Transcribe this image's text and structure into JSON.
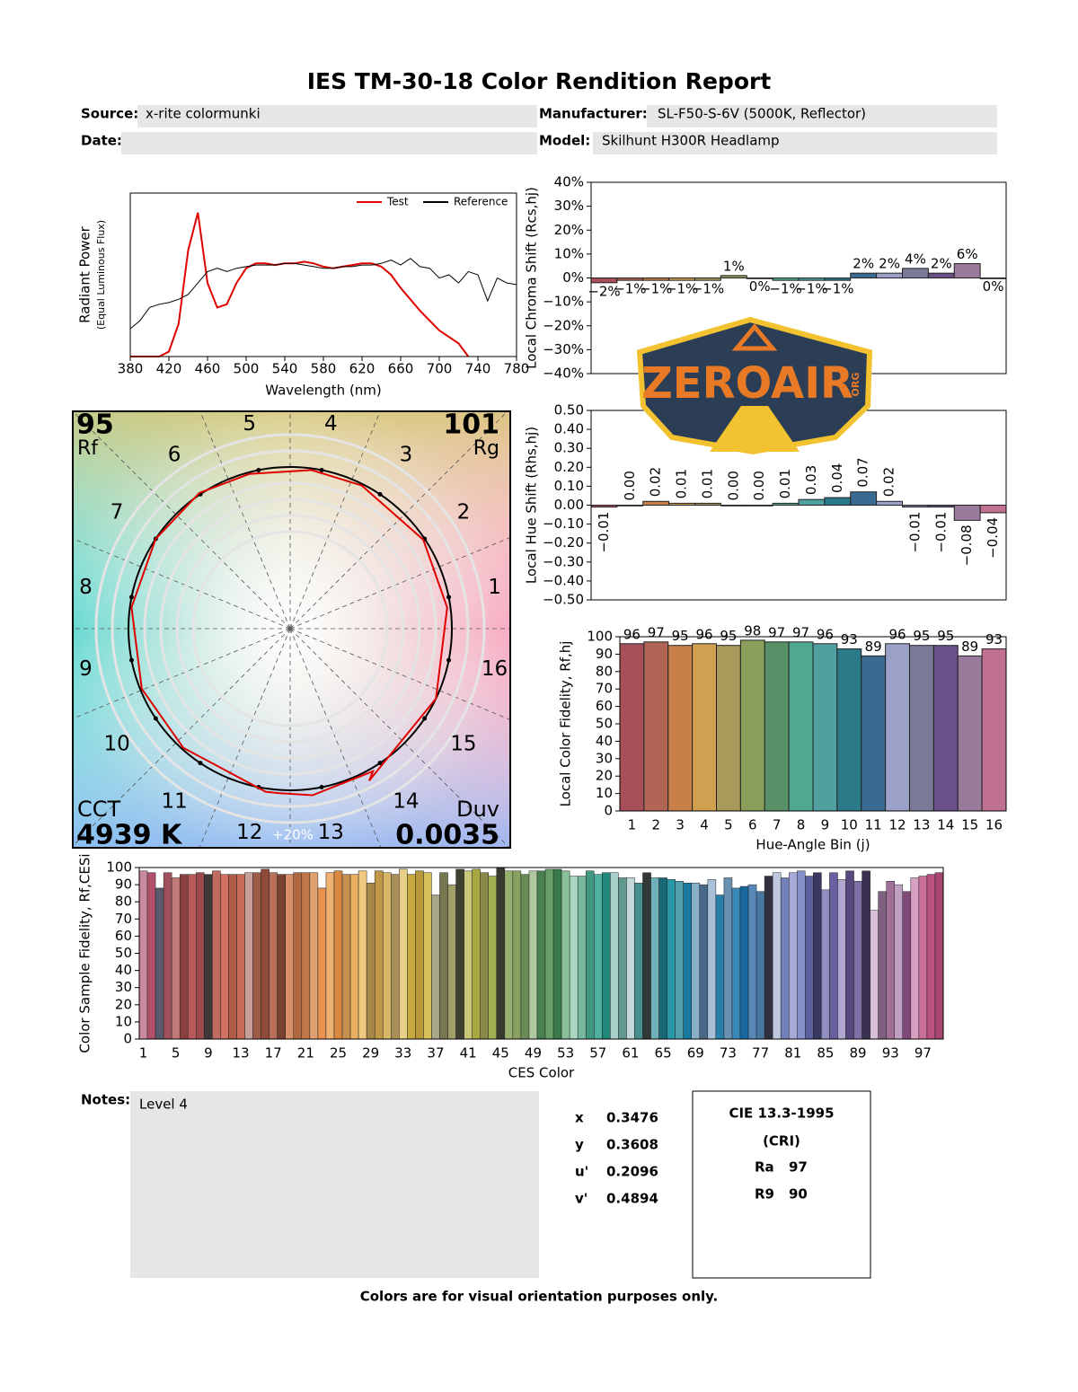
{
  "header": {
    "title": "IES TM-30-18 Color Rendition Report",
    "source_label": "Source:",
    "source": "x-rite colormunki",
    "manufacturer_label": "Manufacturer:",
    "manufacturer": "SL-F50-S-6V (5000K, Reflector)",
    "date_label": "Date:",
    "model_label": "Model:",
    "model": "Skilhunt H300R Headlamp"
  },
  "logo": {
    "text": "ZEROAIR",
    "suffix": "ORG"
  },
  "chart_data": [
    {
      "type": "line",
      "xlabel": "Wavelength (nm)",
      "ylabel": "Radiant Power",
      "ylabel_note": "(Equal Luminous Flux)",
      "x": [
        380,
        390,
        400,
        410,
        420,
        430,
        440,
        450,
        460,
        470,
        480,
        490,
        500,
        510,
        520,
        530,
        540,
        550,
        560,
        570,
        580,
        590,
        600,
        610,
        620,
        630,
        640,
        650,
        660,
        670,
        680,
        690,
        700,
        710,
        720,
        730,
        740,
        750,
        760,
        770,
        780
      ],
      "series": [
        {
          "name": "Test",
          "color": "#e00000",
          "values": [
            0,
            0,
            0,
            0,
            0.03,
            0.2,
            0.65,
            0.88,
            0.45,
            0.3,
            0.32,
            0.45,
            0.54,
            0.57,
            0.57,
            0.56,
            0.57,
            0.57,
            0.58,
            0.57,
            0.55,
            0.54,
            0.55,
            0.56,
            0.57,
            0.57,
            0.55,
            0.5,
            0.42,
            0.35,
            0.28,
            0.22,
            0.16,
            0.12,
            0.08,
            0,
            null,
            null,
            null,
            null,
            null
          ]
        },
        {
          "name": "Reference",
          "color": "#000000",
          "values": [
            0.17,
            0.22,
            0.3,
            0.32,
            0.33,
            0.35,
            0.38,
            0.45,
            0.52,
            0.54,
            0.52,
            0.54,
            0.55,
            0.56,
            0.56,
            0.56,
            0.57,
            0.57,
            0.56,
            0.55,
            0.54,
            0.54,
            0.55,
            0.55,
            0.56,
            0.56,
            0.57,
            0.59,
            0.56,
            0.6,
            0.55,
            0.54,
            0.48,
            0.5,
            0.45,
            0.52,
            0.5,
            0.34,
            0.48,
            0.45,
            0.44
          ]
        }
      ],
      "xlim": [
        380,
        780
      ],
      "xticks": [
        380,
        420,
        460,
        500,
        540,
        580,
        620,
        660,
        700,
        740,
        780
      ],
      "ylim": [
        0,
        1
      ],
      "legend": "upper right"
    },
    {
      "type": "bar",
      "ylabel": "Local Chroma Shift (Rcs,hj)",
      "values": [
        -2,
        -1,
        -1,
        -1,
        -1,
        1,
        0,
        -1,
        -1,
        -1,
        2,
        2,
        4,
        2,
        6,
        0
      ],
      "value_labels": [
        "−2%",
        "−1%",
        "−1%",
        "−1%",
        "−1%",
        "1%",
        "0%",
        "−1%",
        "−1%",
        "−1%",
        "2%",
        "2%",
        "4%",
        "2%",
        "6%",
        "0%"
      ],
      "colors": [
        "#a8505a",
        "#b06555",
        "#c8804a",
        "#d0a050",
        "#a89a5a",
        "#8aa05a",
        "#5a9068",
        "#50a890",
        "#50a0a0",
        "#2a7a8a",
        "#3a6a90",
        "#9aa0c8",
        "#7a7a98",
        "#6a5088",
        "#9a7a9a",
        "#c07090"
      ],
      "ylim": [
        -40,
        40
      ],
      "yticks": [
        {
          "value": 40,
          "label": "40%"
        },
        {
          "value": 30,
          "label": "30%"
        },
        {
          "value": 20,
          "label": "20%"
        },
        {
          "value": 10,
          "label": "10%"
        },
        {
          "value": 0,
          "label": "0%"
        },
        {
          "value": -10,
          "label": "−10%"
        },
        {
          "value": -20,
          "label": "−20%"
        },
        {
          "value": -30,
          "label": "−30%"
        },
        {
          "value": -40,
          "label": "−40%"
        }
      ]
    },
    {
      "type": "bar",
      "ylabel": "Local Hue Shift (Rhs,hj)",
      "rotate_labels": true,
      "values": [
        -0.01,
        0.0,
        0.02,
        0.01,
        0.01,
        0.0,
        0.0,
        0.01,
        0.03,
        0.04,
        0.07,
        0.02,
        -0.01,
        -0.01,
        -0.08,
        -0.04
      ],
      "value_labels": [
        "−0.01",
        "0.00",
        "0.02",
        "0.01",
        "0.01",
        "0.00",
        "0.00",
        "0.01",
        "0.03",
        "0.04",
        "0.07",
        "0.02",
        "−0.01",
        "−0.01",
        "−0.08",
        "−0.04"
      ],
      "colors": [
        "#a8505a",
        "#b06555",
        "#c8804a",
        "#d0a050",
        "#a89a5a",
        "#8aa05a",
        "#5a9068",
        "#50a890",
        "#50a0a0",
        "#2a7a8a",
        "#3a6a90",
        "#9aa0c8",
        "#7a7a98",
        "#6a5088",
        "#9a7a9a",
        "#c07090"
      ],
      "ylim": [
        -0.5,
        0.5
      ],
      "yticks": [
        {
          "value": 0.5,
          "label": "0.50"
        },
        {
          "value": 0.4,
          "label": "0.40"
        },
        {
          "value": 0.3,
          "label": "0.30"
        },
        {
          "value": 0.2,
          "label": "0.20"
        },
        {
          "value": 0.1,
          "label": "0.10"
        },
        {
          "value": 0,
          "label": "0.00"
        },
        {
          "value": -0.1,
          "label": "−0.10"
        },
        {
          "value": -0.2,
          "label": "−0.20"
        },
        {
          "value": -0.3,
          "label": "−0.30"
        },
        {
          "value": -0.4,
          "label": "−0.40"
        },
        {
          "value": -0.5,
          "label": "−0.50"
        }
      ]
    },
    {
      "type": "bar",
      "xlabel": "Hue-Angle Bin (j)",
      "ylabel": "Local Color Fidelity, Rf,hj",
      "categories": [
        "1",
        "2",
        "3",
        "4",
        "5",
        "6",
        "7",
        "8",
        "9",
        "10",
        "11",
        "12",
        "13",
        "14",
        "15",
        "16"
      ],
      "values": [
        96,
        97,
        95,
        96,
        95,
        98,
        97,
        97,
        96,
        93,
        89,
        96,
        95,
        95,
        89,
        93
      ],
      "show_values": true,
      "colors": [
        "#a8505a",
        "#b06555",
        "#c8804a",
        "#d0a050",
        "#a89a5a",
        "#8aa05a",
        "#5a9068",
        "#50a890",
        "#50a0a0",
        "#2a7a8a",
        "#3a6a90",
        "#9aa0c8",
        "#7a7a98",
        "#6a5088",
        "#9a7a9a",
        "#c07090"
      ],
      "ylim": [
        0,
        100
      ],
      "yticks": [
        0,
        10,
        20,
        30,
        40,
        50,
        60,
        70,
        80,
        90,
        100
      ]
    },
    {
      "type": "bar",
      "xlabel": "CES Color",
      "ylabel": "Color Sample Fidelity, Rf,CESi",
      "categories": [
        "1",
        null,
        null,
        null,
        "5",
        null,
        null,
        null,
        "9",
        null,
        null,
        null,
        "13",
        null,
        null,
        null,
        "17",
        null,
        null,
        null,
        "21",
        null,
        null,
        null,
        "25",
        null,
        null,
        null,
        "29",
        null,
        null,
        null,
        "33",
        null,
        null,
        null,
        "37",
        null,
        null,
        null,
        "41",
        null,
        null,
        null,
        "45",
        null,
        null,
        null,
        "49",
        null,
        null,
        null,
        "53",
        null,
        null,
        null,
        "57",
        null,
        null,
        null,
        "61",
        null,
        null,
        null,
        "65",
        null,
        null,
        null,
        "69",
        null,
        null,
        null,
        "73",
        null,
        null,
        null,
        "77",
        null,
        null,
        null,
        "81",
        null,
        null,
        null,
        "85",
        null,
        null,
        null,
        "89",
        null,
        null,
        null,
        "93",
        null,
        null,
        null,
        "97",
        null,
        null
      ],
      "values": [
        98,
        97,
        88,
        97,
        94,
        96,
        96,
        97,
        96,
        98,
        96,
        96,
        96,
        97,
        97,
        99,
        97,
        96,
        96,
        97,
        97,
        97,
        88,
        97,
        98,
        96,
        96,
        98,
        91,
        98,
        97,
        96,
        99,
        96,
        98,
        97,
        84,
        97,
        90,
        99,
        98,
        99,
        97,
        95,
        100,
        98,
        98,
        96,
        98,
        98,
        99,
        99,
        98,
        95,
        95,
        98,
        96,
        97,
        97,
        94,
        94,
        91,
        97,
        94,
        94,
        93,
        92,
        91,
        91,
        90,
        93,
        84,
        94,
        88,
        89,
        90,
        86,
        95,
        97,
        94,
        97,
        98,
        95,
        97,
        87,
        97,
        93,
        98,
        92,
        98,
        75,
        86,
        92,
        90,
        86,
        94,
        95,
        96,
        97
      ],
      "colors": [
        "#c98aa0",
        "#b0506a",
        "#5a5a6e",
        "#a0505a",
        "#c07a7a",
        "#8a4040",
        "#b85a5a",
        "#9a4a4a",
        "#3e3838",
        "#c06a60",
        "#d07060",
        "#b05a48",
        "#c86a58",
        "#c8a098",
        "#a05a48",
        "#904a3a",
        "#b8705a",
        "#7a4030",
        "#d8906a",
        "#b06840",
        "#c07848",
        "#e0a070",
        "#e89050",
        "#f0b070",
        "#d88840",
        "#c89050",
        "#e8b060",
        "#f0c880",
        "#a88848",
        "#c09848",
        "#d8b868",
        "#a89058",
        "#e8d088",
        "#c8a840",
        "#b89838",
        "#d8c058",
        "#a8a888",
        "#787850",
        "#a0a068",
        "#404030",
        "#c8c878",
        "#a8a840",
        "#888848",
        "#a0b050",
        "#383c30",
        "#98b070",
        "#88a060",
        "#6a8a58",
        "#b0c8a0",
        "#488050",
        "#68a068",
        "#3a7a4a",
        "#88c098",
        "#a8d8c0",
        "#78b8a0",
        "#409880",
        "#50b0a0",
        "#208878",
        "#a8d0c8",
        "#609890",
        "#c0d8d8",
        "#489090",
        "#303838",
        "#70b0b8",
        "#186878",
        "#2898a8",
        "#50a0b0",
        "#1878a0",
        "#88b0c8",
        "#486888",
        "#a8c0d8",
        "#2880a8",
        "#6890b0",
        "#3888b8",
        "#1868a0",
        "#5888b8",
        "#4878a0",
        "#303040",
        "#c0c8e0",
        "#7080b8",
        "#a8a8d8",
        "#8890c8",
        "#5860a0",
        "#383860",
        "#9090c0",
        "#6860a0",
        "#b0a8d0",
        "#584880",
        "#8070a8",
        "#3a3050",
        "#d8c0d8",
        "#806080",
        "#a07098",
        "#c0a0c0",
        "#804a78",
        "#d8a0c0",
        "#c87098",
        "#b85080",
        "#a84870"
      ],
      "ylim": [
        0,
        100
      ],
      "yticks": [
        0,
        10,
        20,
        30,
        40,
        50,
        60,
        70,
        80,
        90,
        100
      ]
    },
    {
      "type": "vector",
      "bin_labels": [
        "1",
        "2",
        "3",
        "4",
        "5",
        "6",
        "7",
        "8",
        "9",
        "10",
        "11",
        "12",
        "13",
        "14",
        "15",
        "16"
      ],
      "rf": 95,
      "rf_label": "Rf",
      "rg": 101,
      "rg_label": "Rg",
      "cct_label": "CCT",
      "cct": {
        "value": 4939,
        "label": "4939 K"
      },
      "duv_label": "Duv",
      "duv": 0.0035,
      "ring_label": "+20%",
      "test_color": "#e00000",
      "reference_color": "#000000"
    }
  ],
  "notes": {
    "label": "Notes:",
    "text": "Level 4"
  },
  "chromaticity": [
    {
      "label": "x",
      "value": 0.3476
    },
    {
      "label": "y",
      "value": 0.3608
    },
    {
      "label": "u'",
      "value": 0.2096
    },
    {
      "label": "v'",
      "value": 0.4894
    }
  ],
  "cri": {
    "title": "CIE 13.3-1995",
    "subtitle": "(CRI)",
    "items": [
      {
        "label": "Ra",
        "value": 97
      },
      {
        "label": "R9",
        "value": 90
      }
    ]
  },
  "footer": "Colors are for visual orientation purposes only."
}
